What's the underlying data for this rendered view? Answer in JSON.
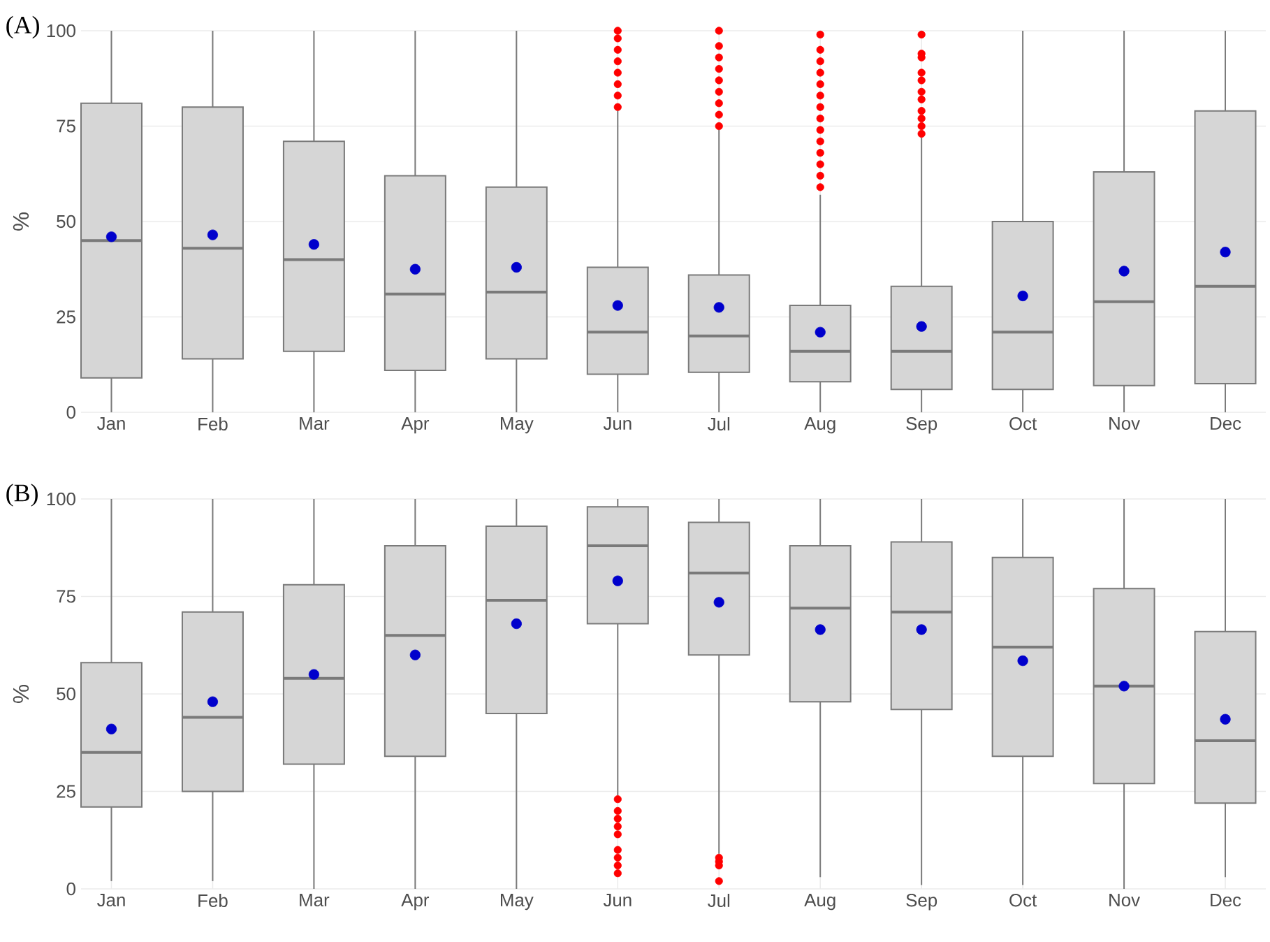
{
  "chart_data": [
    {
      "type": "box",
      "title": "(A)",
      "ylabel": "%",
      "categories": [
        "Jan",
        "Feb",
        "Mar",
        "Apr",
        "May",
        "Jun",
        "Jul",
        "Aug",
        "Sep",
        "Oct",
        "Nov",
        "Dec"
      ],
      "ylim": [
        0,
        100
      ],
      "yticks": [
        0,
        25,
        50,
        75,
        100
      ],
      "grid": true,
      "boxes": [
        {
          "low": 0,
          "q1": 9,
          "median": 45,
          "q3": 81,
          "high": 100,
          "mean": 46
        },
        {
          "low": 0,
          "q1": 14,
          "median": 43,
          "q3": 80,
          "high": 100,
          "mean": 46.5
        },
        {
          "low": 0,
          "q1": 16,
          "median": 40,
          "q3": 71,
          "high": 100,
          "mean": 44
        },
        {
          "low": 0,
          "q1": 11,
          "median": 31,
          "q3": 62,
          "high": 100,
          "mean": 37.5
        },
        {
          "low": 0,
          "q1": 14,
          "median": 31.5,
          "q3": 59,
          "high": 100,
          "mean": 38
        },
        {
          "low": 0,
          "q1": 10,
          "median": 21,
          "q3": 38,
          "high": 79,
          "mean": 28,
          "outliers": [
            80,
            83,
            86,
            89,
            92,
            95,
            98,
            100
          ]
        },
        {
          "low": 0,
          "q1": 10.5,
          "median": 20,
          "q3": 36,
          "high": 74,
          "mean": 27.5,
          "outliers": [
            75,
            78,
            81,
            84,
            87,
            90,
            93,
            96,
            100
          ]
        },
        {
          "low": 0,
          "q1": 8,
          "median": 16,
          "q3": 28,
          "high": 57,
          "mean": 21,
          "outliers": [
            59,
            62,
            65,
            68,
            71,
            74,
            77,
            80,
            83,
            86,
            89,
            92,
            95,
            99
          ]
        },
        {
          "low": 0,
          "q1": 6,
          "median": 16,
          "q3": 33,
          "high": 72,
          "mean": 22.5,
          "outliers": [
            73,
            75,
            77,
            79,
            82,
            84,
            87,
            89,
            93,
            94,
            99
          ]
        },
        {
          "low": 0,
          "q1": 6,
          "median": 21,
          "q3": 50,
          "high": 100,
          "mean": 30.5
        },
        {
          "low": 0,
          "q1": 7,
          "median": 29,
          "q3": 63,
          "high": 100,
          "mean": 37
        },
        {
          "low": 0,
          "q1": 7.5,
          "median": 33,
          "q3": 79,
          "high": 100,
          "mean": 42
        }
      ]
    },
    {
      "type": "box",
      "title": "(B)",
      "ylabel": "%",
      "categories": [
        "Jan",
        "Feb",
        "Mar",
        "Apr",
        "May",
        "Jun",
        "Jul",
        "Aug",
        "Sep",
        "Oct",
        "Nov",
        "Dec"
      ],
      "ylim": [
        0,
        100
      ],
      "yticks": [
        0,
        25,
        50,
        75,
        100
      ],
      "grid": true,
      "boxes": [
        {
          "low": 2,
          "q1": 21,
          "median": 35,
          "q3": 58,
          "high": 100,
          "mean": 41
        },
        {
          "low": 2,
          "q1": 25,
          "median": 44,
          "q3": 71,
          "high": 100,
          "mean": 48
        },
        {
          "low": 0,
          "q1": 32,
          "median": 54,
          "q3": 78,
          "high": 100,
          "mean": 55
        },
        {
          "low": 0,
          "q1": 34,
          "median": 65,
          "q3": 88,
          "high": 100,
          "mean": 60
        },
        {
          "low": 0,
          "q1": 45,
          "median": 74,
          "q3": 93,
          "high": 100,
          "mean": 68
        },
        {
          "low": 24,
          "q1": 68,
          "median": 88,
          "q3": 98,
          "high": 100,
          "mean": 79,
          "outliers": [
            4,
            6,
            8,
            10,
            14,
            16,
            18,
            20,
            23
          ]
        },
        {
          "low": 9,
          "q1": 60,
          "median": 81,
          "q3": 94,
          "high": 100,
          "mean": 73.5,
          "outliers": [
            2,
            6,
            7,
            8
          ]
        },
        {
          "low": 3,
          "q1": 48,
          "median": 72,
          "q3": 88,
          "high": 100,
          "mean": 66.5
        },
        {
          "low": 1,
          "q1": 46,
          "median": 71,
          "q3": 89,
          "high": 100,
          "mean": 66.5
        },
        {
          "low": 1,
          "q1": 34,
          "median": 62,
          "q3": 85,
          "high": 100,
          "mean": 58.5
        },
        {
          "low": 0,
          "q1": 27,
          "median": 52,
          "q3": 77,
          "high": 100,
          "mean": 52
        },
        {
          "low": 3,
          "q1": 22,
          "median": 38,
          "q3": 66,
          "high": 100,
          "mean": 43.5
        }
      ]
    }
  ]
}
